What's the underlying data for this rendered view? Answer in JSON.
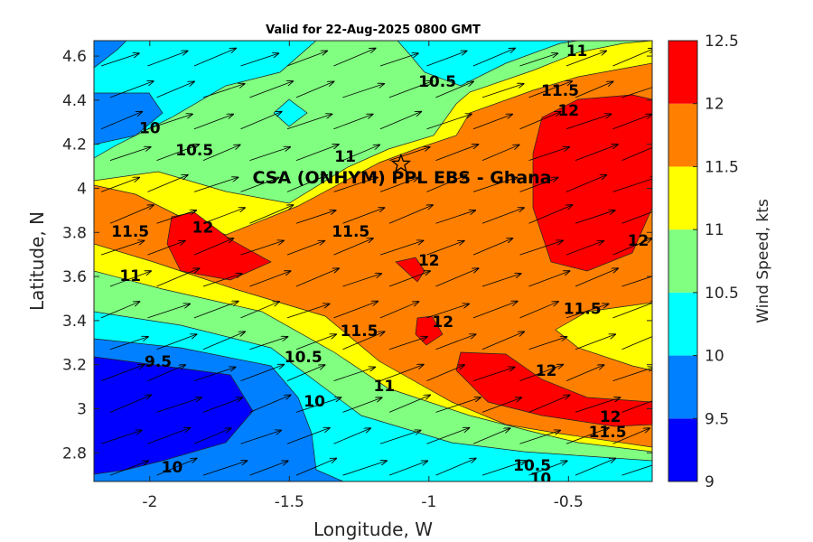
{
  "chart_data": {
    "type": "heatmap",
    "title": "Valid for 22-Aug-2025 0800 GMT",
    "xlabel": "Longitude, W",
    "ylabel": "Latitude, N",
    "xlim": [
      -2.2,
      -0.2
    ],
    "ylim": [
      2.67,
      4.67
    ],
    "xticks": [
      -2,
      -1.5,
      -1,
      -0.5
    ],
    "xtick_labels": [
      "-2",
      "-1.5",
      "-1",
      "-0.5"
    ],
    "yticks": [
      2.8,
      3.0,
      3.2,
      3.4,
      3.6,
      3.8,
      4.0,
      4.2,
      4.4,
      4.6
    ],
    "ytick_labels": [
      "2.8",
      "3",
      "3.2",
      "3.4",
      "3.6",
      "3.8",
      "4",
      "4.2",
      "4.4",
      "4.6"
    ],
    "colorbar": {
      "label": "Wind Speed, kts",
      "levels": [
        9,
        9.5,
        10,
        10.5,
        11,
        11.5,
        12,
        12.5
      ],
      "tick_labels": [
        "9",
        "9.5",
        "10",
        "10.5",
        "11",
        "11.5",
        "12",
        "12.5"
      ],
      "colors": [
        "#0000ff",
        "#0080ff",
        "#00ffff",
        "#80ff80",
        "#ffff00",
        "#ff8000",
        "#ff0000"
      ]
    },
    "grid": false,
    "annotation": {
      "text": "CSA (ONHYM) PPL EBS  - Ghana",
      "marker": "star",
      "marker_lon": -1.1,
      "marker_lat": 4.11
    },
    "wind_vector_direction": "toward east-northeast",
    "contour_labels": [
      {
        "text": "11",
        "lon": -0.47,
        "lat": 4.6
      },
      {
        "text": "10.5",
        "lon": -0.97,
        "lat": 4.46
      },
      {
        "text": "11.5",
        "lon": -0.53,
        "lat": 4.42
      },
      {
        "text": "12",
        "lon": -0.5,
        "lat": 4.33
      },
      {
        "text": "10",
        "lon": -2.0,
        "lat": 4.25
      },
      {
        "text": "10.5",
        "lon": -1.84,
        "lat": 4.15
      },
      {
        "text": "11",
        "lon": -1.3,
        "lat": 4.12
      },
      {
        "text": "12",
        "lon": -1.81,
        "lat": 3.8
      },
      {
        "text": "11.5",
        "lon": -2.07,
        "lat": 3.78
      },
      {
        "text": "11.5",
        "lon": -1.28,
        "lat": 3.78
      },
      {
        "text": "12",
        "lon": -1.0,
        "lat": 3.65
      },
      {
        "text": "12",
        "lon": -0.25,
        "lat": 3.74
      },
      {
        "text": "11",
        "lon": -2.07,
        "lat": 3.58
      },
      {
        "text": "11.5",
        "lon": -0.45,
        "lat": 3.43
      },
      {
        "text": "12",
        "lon": -0.95,
        "lat": 3.37
      },
      {
        "text": "11.5",
        "lon": -1.25,
        "lat": 3.33
      },
      {
        "text": "9.5",
        "lon": -1.97,
        "lat": 3.19
      },
      {
        "text": "10.5",
        "lon": -1.45,
        "lat": 3.21
      },
      {
        "text": "12",
        "lon": -0.58,
        "lat": 3.15
      },
      {
        "text": "11",
        "lon": -1.16,
        "lat": 3.08
      },
      {
        "text": "10",
        "lon": -1.41,
        "lat": 3.01
      },
      {
        "text": "12",
        "lon": -0.35,
        "lat": 2.94
      },
      {
        "text": "11.5",
        "lon": -0.36,
        "lat": 2.87
      },
      {
        "text": "10",
        "lon": -1.92,
        "lat": 2.71
      },
      {
        "text": "10.5",
        "lon": -0.63,
        "lat": 2.72
      },
      {
        "text": "10",
        "lon": -0.6,
        "lat": 2.66
      }
    ]
  }
}
